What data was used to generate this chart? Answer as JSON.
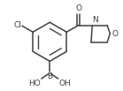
{
  "bg_color": "#ffffff",
  "line_color": "#404040",
  "line_width": 1.1,
  "font_size": 6.5,
  "xlim": [
    -0.7,
    1.35
  ],
  "ylim": [
    -0.75,
    0.82
  ]
}
